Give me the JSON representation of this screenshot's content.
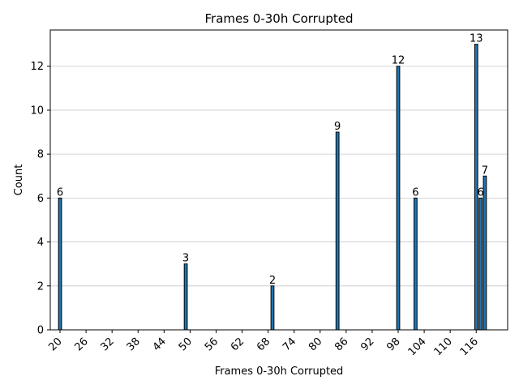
{
  "chart_data": {
    "type": "bar",
    "title": "Frames 0-30h Corrupted",
    "xlabel": "Frames 0-30h Corrupted",
    "ylabel": "Count",
    "xlim": [
      17.75,
      123.25
    ],
    "ylim": [
      0,
      13.65
    ],
    "x_ticks": [
      20,
      26,
      32,
      38,
      44,
      50,
      56,
      62,
      68,
      74,
      80,
      86,
      92,
      98,
      104,
      110,
      116
    ],
    "y_ticks": [
      0,
      2,
      4,
      6,
      8,
      10,
      12
    ],
    "grid": "y",
    "bars": [
      {
        "x": 20,
        "value": 6,
        "label": "6"
      },
      {
        "x": 49,
        "value": 3,
        "label": "3"
      },
      {
        "x": 69,
        "value": 2,
        "label": "2"
      },
      {
        "x": 84,
        "value": 9,
        "label": "9"
      },
      {
        "x": 98,
        "value": 12,
        "label": "12"
      },
      {
        "x": 102,
        "value": 6,
        "label": "6"
      },
      {
        "x": 116,
        "value": 13,
        "label": "13"
      },
      {
        "x": 117,
        "value": 6,
        "label": "6"
      },
      {
        "x": 118,
        "value": 7,
        "label": "7"
      }
    ],
    "colors": {
      "bar": "#1f77b4",
      "edge": "#000000",
      "grid": "#c8c8c8"
    }
  }
}
